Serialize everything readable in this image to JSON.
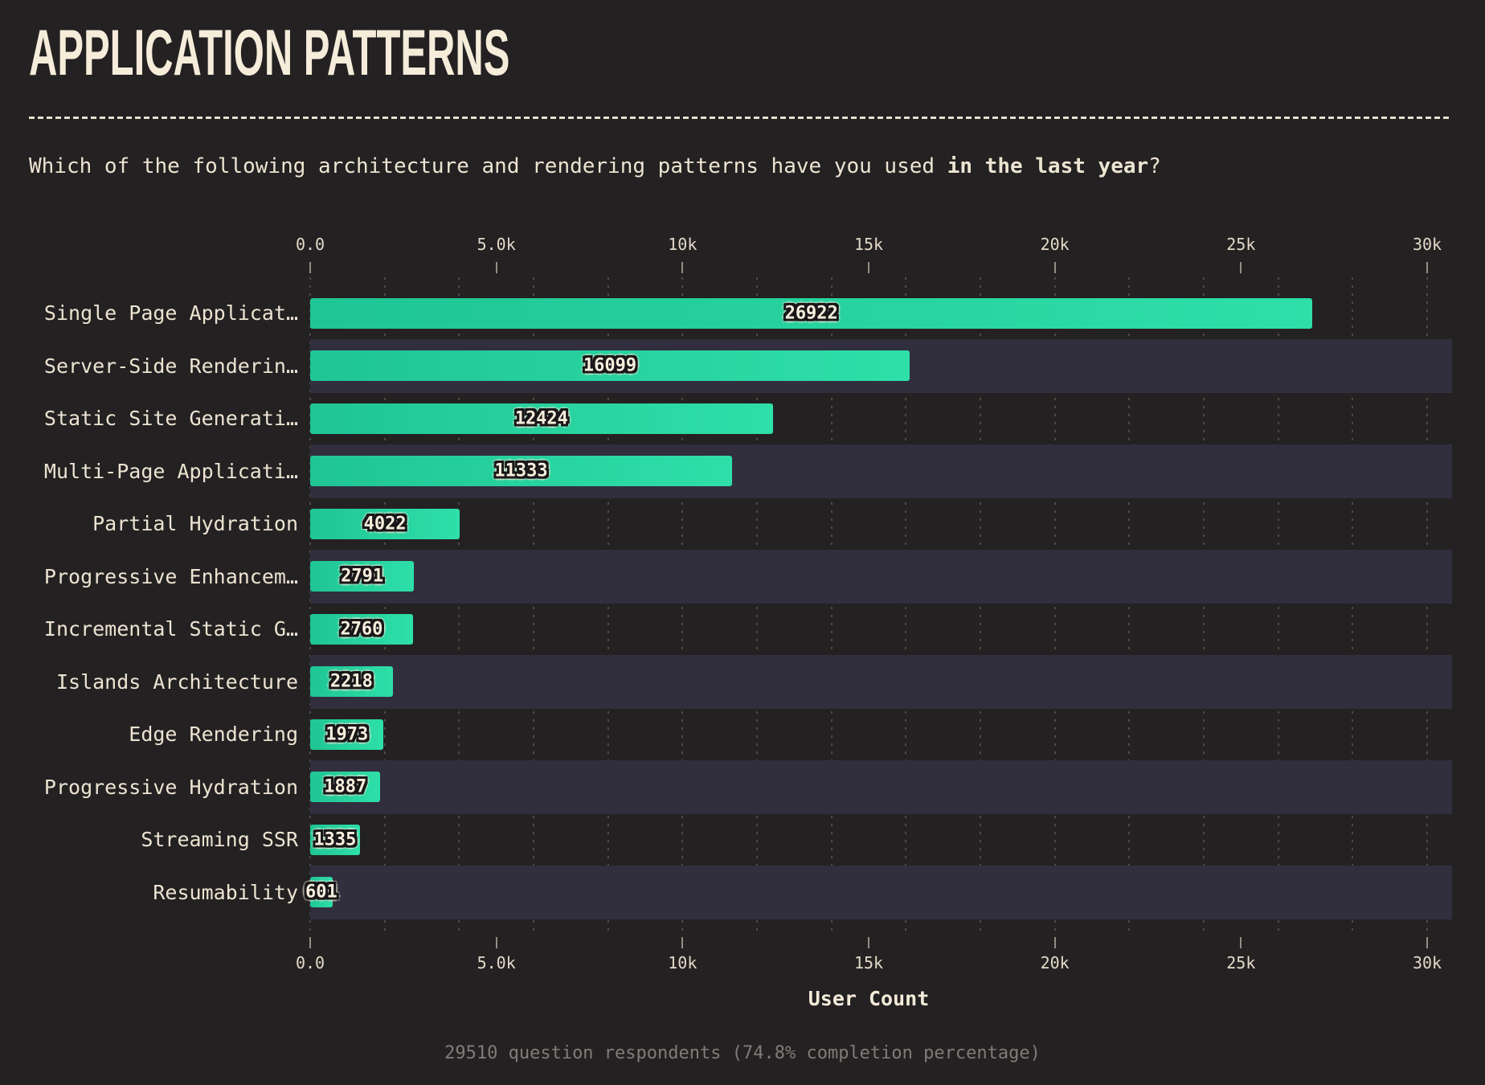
{
  "page": {
    "title": "APPLICATION PATTERNS",
    "question": {
      "prefix": "Which of the following architecture and rendering patterns have you used ",
      "bold": "in the last year",
      "suffix": "?"
    },
    "footer": "29510 question respondents (74.8% completion percentage)"
  },
  "chart_data": {
    "type": "bar",
    "orientation": "horizontal",
    "title": "APPLICATION PATTERNS",
    "categories": [
      "Single Page Applicat…",
      "Server-Side Renderin…",
      "Static Site Generati…",
      "Multi-Page Applicati…",
      "Partial Hydration",
      "Progressive Enhancem…",
      "Incremental Static G…",
      "Islands Architecture",
      "Edge Rendering",
      "Progressive Hydration",
      "Streaming SSR",
      "Resumability"
    ],
    "values": [
      26922,
      16099,
      12424,
      11333,
      4022,
      2791,
      2760,
      2218,
      1973,
      1887,
      1335,
      601
    ],
    "xlabel": "User Count",
    "xlim": [
      0,
      30000
    ],
    "x_ticks": [
      {
        "value": 0,
        "label": "0.0"
      },
      {
        "value": 5000,
        "label": "5.0k"
      },
      {
        "value": 10000,
        "label": "10k"
      },
      {
        "value": 15000,
        "label": "15k"
      },
      {
        "value": 20000,
        "label": "20k"
      },
      {
        "value": 25000,
        "label": "25k"
      },
      {
        "value": 30000,
        "label": "30k"
      }
    ],
    "minor_gridline_step": 2000,
    "gridlines": "dotted-vertical",
    "row_band_alternate": true,
    "axis_positions": "top-and-bottom",
    "legend": null
  },
  "colors": {
    "background": "#242122",
    "row_band": "#312e3e",
    "bar_gradient_start": "#1fc594",
    "bar_gradient_end": "#2edfa8",
    "text_cream": "#f5ecda",
    "text_muted": "#807c77",
    "value_label_fill": "#f7efdd",
    "value_label_outline": "#191719"
  }
}
